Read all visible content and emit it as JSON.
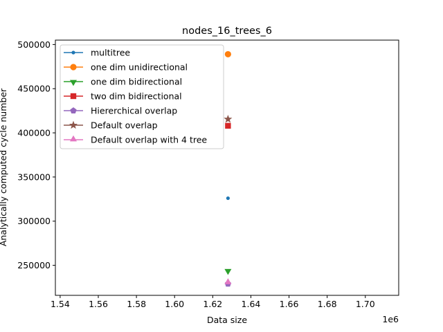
{
  "chart_data": {
    "type": "scatter",
    "title": "nodes_16_trees_6",
    "xlabel": "Data size",
    "ylabel": "Analytically computed cycle number",
    "x_offset_label": "1e6",
    "xlim": [
      1.5375,
      1.7175
    ],
    "ylim": [
      216000,
      505000
    ],
    "x_ticks": [
      1.54,
      1.56,
      1.58,
      1.6,
      1.62,
      1.64,
      1.66,
      1.68,
      1.7
    ],
    "x_tick_labels": [
      "1.54",
      "1.56",
      "1.58",
      "1.60",
      "1.62",
      "1.64",
      "1.66",
      "1.68",
      "1.70"
    ],
    "y_ticks": [
      250000,
      300000,
      350000,
      400000,
      450000,
      500000
    ],
    "y_tick_labels": [
      "250000",
      "300000",
      "350000",
      "400000",
      "450000",
      "500000"
    ],
    "legend_position": "top-left",
    "series": [
      {
        "name": "multitree",
        "color": "#1f77b4",
        "marker": "point",
        "x": [
          1.628
        ],
        "y": [
          326000
        ]
      },
      {
        "name": "one dim unidirectional",
        "color": "#ff7f0e",
        "marker": "circle",
        "x": [
          1.628
        ],
        "y": [
          489000
        ]
      },
      {
        "name": "one dim bidirectional",
        "color": "#2ca02c",
        "marker": "triangle-down",
        "x": [
          1.628
        ],
        "y": [
          244000
        ]
      },
      {
        "name": "two dim bidirectional",
        "color": "#d62728",
        "marker": "square",
        "x": [
          1.628
        ],
        "y": [
          408000
        ]
      },
      {
        "name": "Hiererchical overlap",
        "color": "#9467bd",
        "marker": "pentagon",
        "x": [
          1.628
        ],
        "y": [
          229000
        ]
      },
      {
        "name": "Default overlap",
        "color": "#8c564b",
        "marker": "star",
        "x": [
          1.628
        ],
        "y": [
          415500
        ]
      },
      {
        "name": "Default overlap with 4 tree",
        "color": "#e377c2",
        "marker": "triangle-up",
        "x": [
          1.628
        ],
        "y": [
          230500
        ]
      }
    ]
  }
}
